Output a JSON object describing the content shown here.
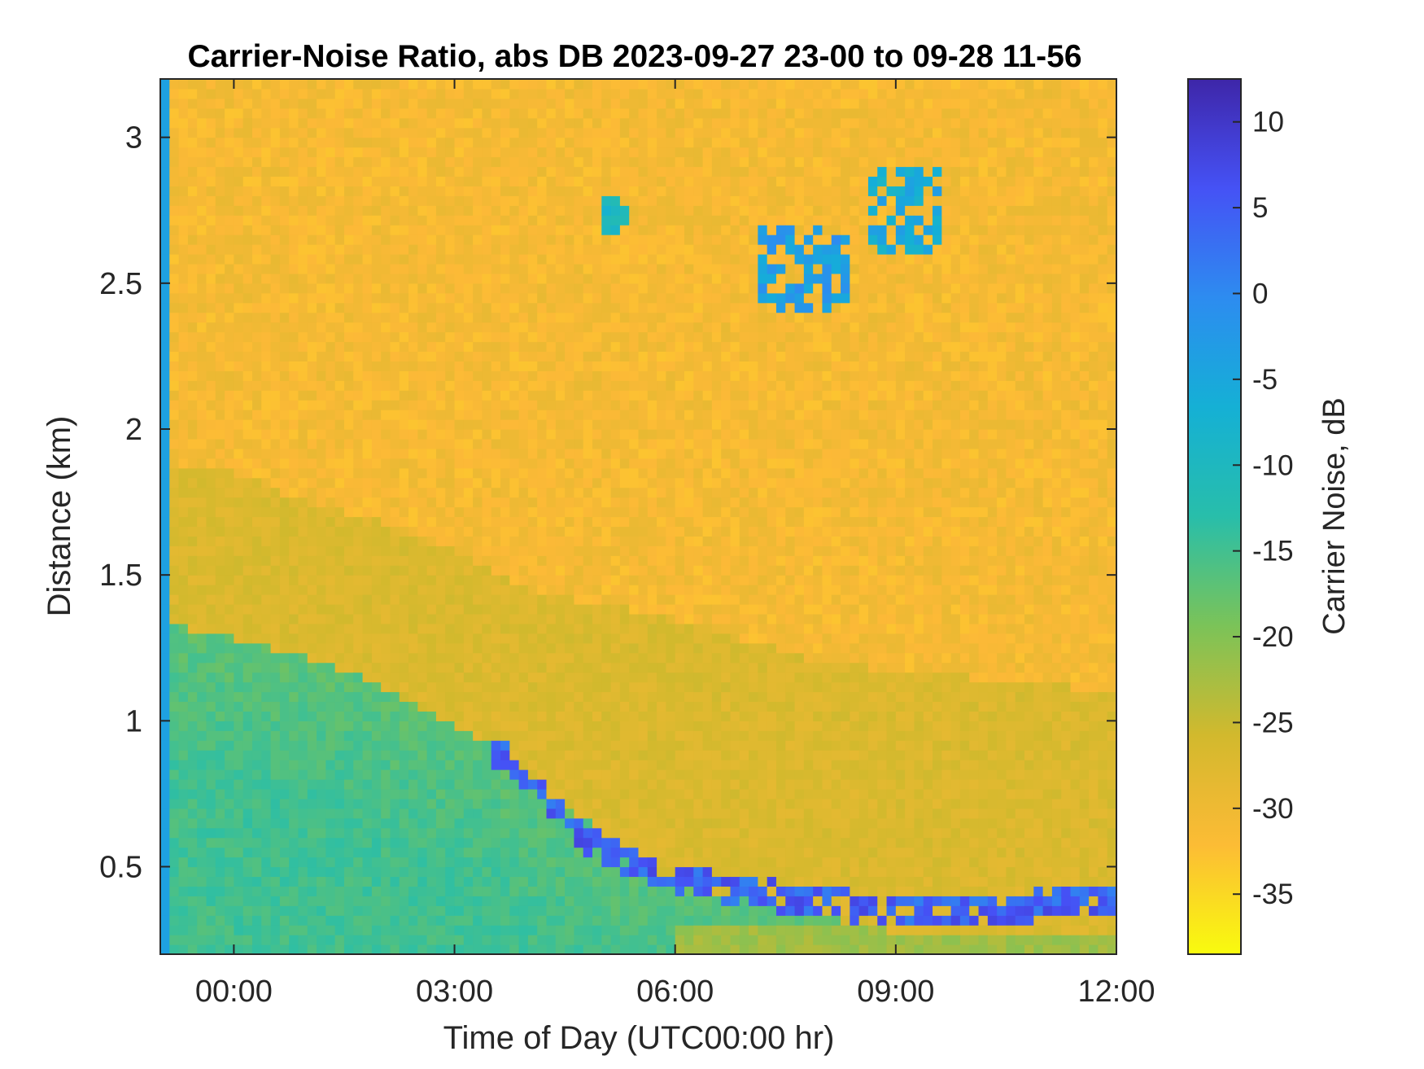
{
  "chart_data": {
    "type": "heatmap",
    "title": "Carrier-Noise Ratio, abs DB 2023-09-27 23-00 to 09-28 11-56",
    "xlabel": "Time of Day (UTC00:00 hr)",
    "ylabel": "Distance (km)",
    "x_ticks": [
      "00:00",
      "03:00",
      "06:00",
      "09:00",
      "12:00"
    ],
    "x_tick_hours": [
      0,
      3,
      6,
      9,
      12
    ],
    "xlim_hours": [
      -1,
      12
    ],
    "y_ticks": [
      "0.5",
      "1",
      "1.5",
      "2",
      "2.5",
      "3"
    ],
    "y_tick_values": [
      0.5,
      1,
      1.5,
      2,
      2.5,
      3
    ],
    "ylim_km": [
      0.2,
      3.2
    ],
    "colorbar": {
      "label": "Carrier Noise, dB",
      "ticks": [
        "10",
        "5",
        "0",
        "-5",
        "-10",
        "-15",
        "-20",
        "-25",
        "-30",
        "-35"
      ],
      "tick_values": [
        10,
        5,
        0,
        -5,
        -10,
        -15,
        -20,
        -25,
        -30,
        -35
      ],
      "clim": [
        -38.5,
        12.5
      ],
      "colormap": "parula",
      "low_color": "#f9fb0e",
      "high_color": "#3e26a8"
    },
    "features": {
      "background_db": -31,
      "near_surface_layer_db": -17,
      "aerosol_top_km": [
        [
          -0.9,
          1.88
        ],
        [
          0,
          1.85
        ],
        [
          1,
          1.75
        ],
        [
          2,
          1.68
        ],
        [
          3,
          1.58
        ],
        [
          4,
          1.45
        ],
        [
          6,
          1.35
        ],
        [
          8,
          1.2
        ],
        [
          12,
          1.1
        ]
      ],
      "strong_layer_top_km": [
        [
          -0.9,
          1.33
        ],
        [
          0,
          1.28
        ],
        [
          1,
          1.22
        ],
        [
          2,
          1.12
        ],
        [
          3,
          0.98
        ],
        [
          3.5,
          0.93
        ],
        [
          4,
          0.8
        ],
        [
          5,
          0.62
        ],
        [
          6,
          0.45
        ],
        [
          7,
          0.38
        ],
        [
          9,
          0.28
        ],
        [
          12,
          0.25
        ]
      ],
      "blue_band": [
        [
          3.55,
          0.9
        ],
        [
          4,
          0.8
        ],
        [
          4.5,
          0.65
        ],
        [
          5,
          0.56
        ],
        [
          5.5,
          0.5
        ],
        [
          6,
          0.45
        ],
        [
          7,
          0.42
        ],
        [
          8,
          0.37
        ],
        [
          9,
          0.36
        ],
        [
          10,
          0.35
        ],
        [
          11,
          0.37
        ],
        [
          12,
          0.38
        ]
      ],
      "clouds": [
        {
          "x_hours": [
            7.1,
            8.4
          ],
          "y_km": [
            2.4,
            2.7
          ],
          "db": -3
        },
        {
          "x_hours": [
            8.6,
            9.6
          ],
          "y_km": [
            2.6,
            2.9
          ],
          "db": -6
        },
        {
          "x_hours": [
            5.0,
            5.4
          ],
          "y_km": [
            2.67,
            2.79
          ],
          "db": -9
        }
      ]
    }
  }
}
